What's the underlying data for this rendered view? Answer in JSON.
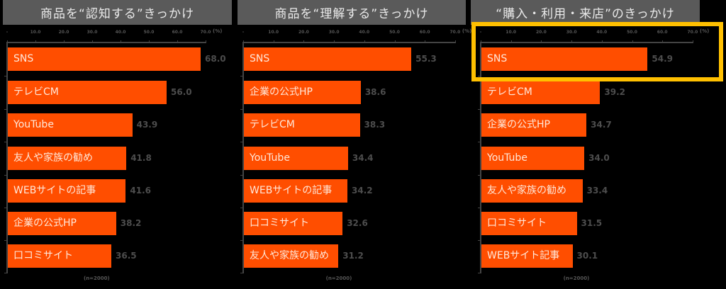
{
  "chart_data": [
    {
      "type": "bar",
      "orientation": "horizontal",
      "title": "商品を“認知する”きっかけ",
      "categories": [
        "SNS",
        "テレビCM",
        "YouTube",
        "友人や家族の勧め",
        "WEBサイトの記事",
        "企業の公式HP",
        "口コミサイト"
      ],
      "values": [
        68.0,
        56.0,
        43.9,
        41.8,
        41.6,
        38.2,
        36.5
      ],
      "value_labels": [
        "68.0",
        "56.0",
        "43.9",
        "41.8",
        "41.6",
        "38.2",
        "36.5"
      ],
      "xlim": [
        0,
        70
      ],
      "x_ticks": [
        "-",
        "10.0",
        "20.0",
        "30.0",
        "40.0",
        "50.0",
        "60.0",
        "70.0"
      ],
      "unit": "(%)",
      "note": "(n=2000)",
      "grid": false,
      "bar_color": "#ff4e00"
    },
    {
      "type": "bar",
      "orientation": "horizontal",
      "title": "商品を“理解する”きっかけ",
      "categories": [
        "SNS",
        "企業の公式HP",
        "テレビCM",
        "YouTube",
        "WEBサイトの記事",
        "口コミサイト",
        "友人や家族の勧め"
      ],
      "values": [
        55.3,
        38.6,
        38.3,
        34.4,
        34.2,
        32.6,
        31.2
      ],
      "value_labels": [
        "55.3",
        "38.6",
        "38.3",
        "34.4",
        "34.2",
        "32.6",
        "31.2"
      ],
      "xlim": [
        0,
        70
      ],
      "x_ticks": [
        "-",
        "10.0",
        "20.0",
        "30.0",
        "40.0",
        "50.0",
        "60.0",
        "70.0"
      ],
      "unit": "(%)",
      "note": "(n=2000)",
      "grid": false,
      "bar_color": "#ff4e00"
    },
    {
      "type": "bar",
      "orientation": "horizontal",
      "title": "“購入・利用・来店”のきっかけ",
      "categories": [
        "SNS",
        "テレビCM",
        "企業の公式HP",
        "YouTube",
        "友人や家族の勧め",
        "口コミサイト",
        "WEBサイト記事"
      ],
      "values": [
        54.9,
        39.2,
        34.7,
        34.0,
        33.4,
        31.5,
        30.1
      ],
      "value_labels": [
        "54.9",
        "39.2",
        "34.7",
        "34.0",
        "33.4",
        "31.5",
        "30.1"
      ],
      "xlim": [
        0,
        70
      ],
      "x_ticks": [
        "-",
        "10.0",
        "20.0",
        "30.0",
        "40.0",
        "50.0",
        "60.0",
        "70.0"
      ],
      "unit": "(%)",
      "note": "(n=2000)",
      "grid": false,
      "bar_color": "#ff4e00",
      "highlighted_category": "SNS",
      "highlight_color": "#ffc000"
    }
  ],
  "panels": [
    {
      "title": "商品を“認知する”きっかけ",
      "unit": "(%)",
      "note": "(n=2000)",
      "ticks": [
        "-",
        "10.0",
        "20.0",
        "30.0",
        "40.0",
        "50.0",
        "60.0",
        "70.0"
      ],
      "bars": [
        {
          "label": "SNS",
          "value": "68.0"
        },
        {
          "label": "テレビCM",
          "value": "56.0"
        },
        {
          "label": "YouTube",
          "value": "43.9"
        },
        {
          "label": "友人や家族の勧め",
          "value": "41.8"
        },
        {
          "label": "WEBサイトの記事",
          "value": "41.6"
        },
        {
          "label": "企業の公式HP",
          "value": "38.2"
        },
        {
          "label": "口コミサイト",
          "value": "36.5"
        }
      ]
    },
    {
      "title": "商品を“理解する”きっかけ",
      "unit": "(%)",
      "note": "(n=2000)",
      "ticks": [
        "-",
        "10.0",
        "20.0",
        "30.0",
        "40.0",
        "50.0",
        "60.0",
        "70.0"
      ],
      "bars": [
        {
          "label": "SNS",
          "value": "55.3"
        },
        {
          "label": "企業の公式HP",
          "value": "38.6"
        },
        {
          "label": "テレビCM",
          "value": "38.3"
        },
        {
          "label": "YouTube",
          "value": "34.4"
        },
        {
          "label": "WEBサイトの記事",
          "value": "34.2"
        },
        {
          "label": "口コミサイト",
          "value": "32.6"
        },
        {
          "label": "友人や家族の勧め",
          "value": "31.2"
        }
      ]
    },
    {
      "title": "“購入・利用・来店”のきっかけ",
      "unit": "(%)",
      "note": "(n=2000)",
      "ticks": [
        "-",
        "10.0",
        "20.0",
        "30.0",
        "40.0",
        "50.0",
        "60.0",
        "70.0"
      ],
      "bars": [
        {
          "label": "SNS",
          "value": "54.9"
        },
        {
          "label": "テレビCM",
          "value": "39.2"
        },
        {
          "label": "企業の公式HP",
          "value": "34.7"
        },
        {
          "label": "YouTube",
          "value": "34.0"
        },
        {
          "label": "友人や家族の勧め",
          "value": "33.4"
        },
        {
          "label": "口コミサイト",
          "value": "31.5"
        },
        {
          "label": "WEBサイト記事",
          "value": "30.1"
        }
      ]
    }
  ]
}
